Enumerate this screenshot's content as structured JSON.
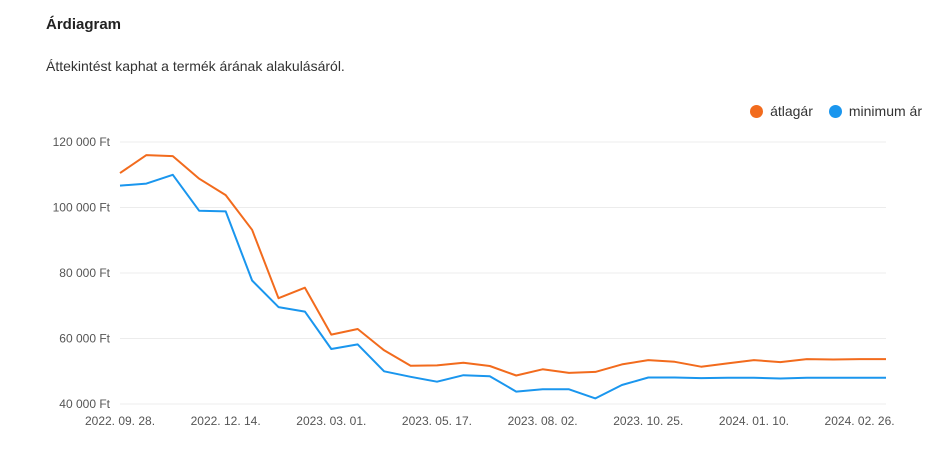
{
  "header": {
    "title": "Árdiagram",
    "subtitle": "Áttekintést kaphat a termék árának alakulásáról."
  },
  "chart_data": {
    "type": "line",
    "ylim": [
      40000,
      120000
    ],
    "y_ticks": [
      {
        "value": 40000,
        "label": "40 000 Ft"
      },
      {
        "value": 60000,
        "label": "60 000 Ft"
      },
      {
        "value": 80000,
        "label": "80 000 Ft"
      },
      {
        "value": 100000,
        "label": "100 000 Ft"
      },
      {
        "value": 120000,
        "label": "120 000 Ft"
      }
    ],
    "x_tick_labels": [
      "2022. 09. 28.",
      "2022. 12. 14.",
      "2023. 03. 01.",
      "2023. 05. 17.",
      "2023. 08. 02.",
      "2023. 10. 25.",
      "2024. 01. 10.",
      "2024. 02. 26."
    ],
    "x_tick_index": [
      0,
      4,
      8,
      12,
      16,
      20,
      24,
      28
    ],
    "grid": true,
    "legend_position": "top-right",
    "series": [
      {
        "name": "átlagár",
        "color": "#f26b1d",
        "values": [
          110500,
          116000,
          115700,
          108800,
          103800,
          93200,
          72300,
          75500,
          61200,
          62900,
          56400,
          51700,
          51800,
          52600,
          51600,
          48700,
          50600,
          49500,
          49800,
          52100,
          53400,
          52900,
          51400,
          52400,
          53400,
          52800,
          53700,
          53600,
          53700,
          53700
        ]
      },
      {
        "name": "minimum ár",
        "color": "#1a96ee",
        "values": [
          106700,
          107300,
          110000,
          99000,
          98800,
          77700,
          69600,
          68200,
          56800,
          58200,
          50000,
          48300,
          46800,
          48800,
          48500,
          43800,
          44500,
          44500,
          41700,
          45800,
          48100,
          48100,
          47900,
          48000,
          48000,
          47800,
          48000,
          48000,
          48000,
          48000
        ]
      }
    ]
  }
}
